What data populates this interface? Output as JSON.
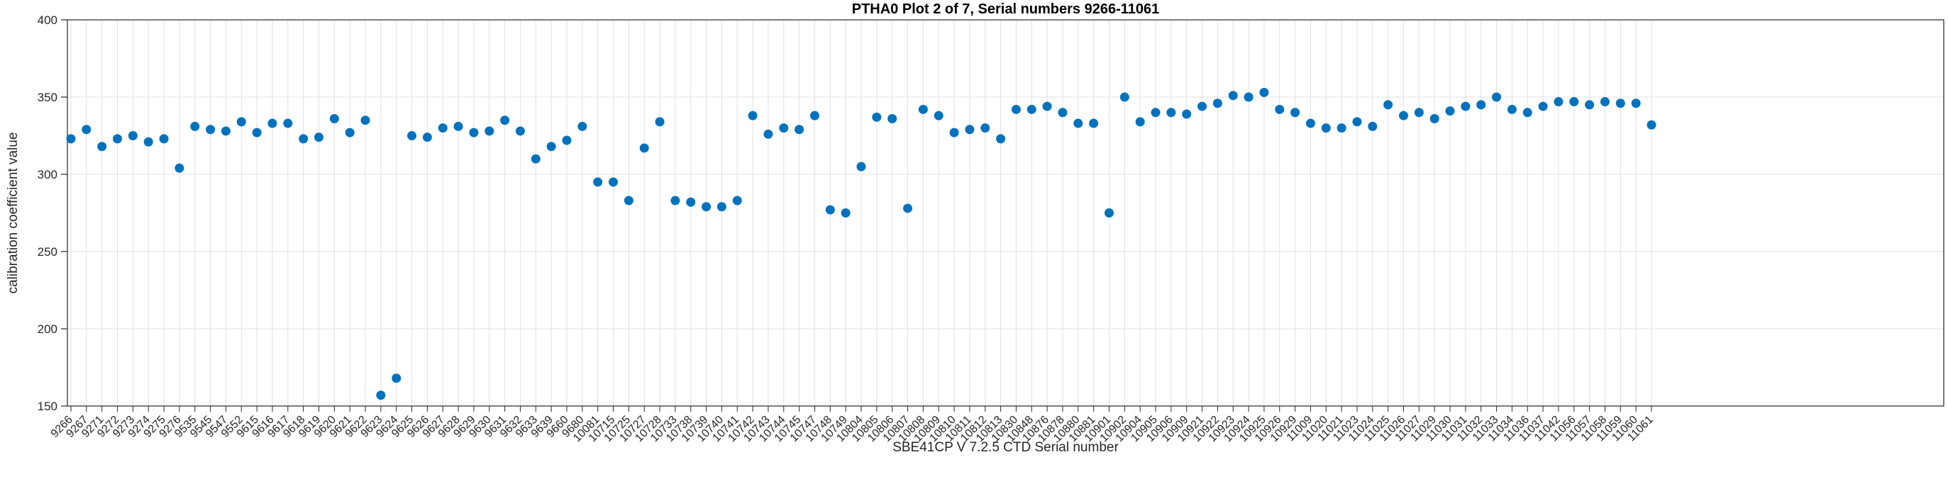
{
  "title": "PTHA0 Plot 2 of 7, Serial numbers 9266-11061",
  "chart_data": {
    "type": "scatter",
    "title": "PTHA0 Plot 2 of 7, Serial numbers 9266-11061",
    "xlabel": "SBE41CP V 7.2.5 CTD Serial number",
    "ylabel": "calibration coefficient value",
    "ylim": [
      150,
      400
    ],
    "yticks": [
      150,
      200,
      250,
      300,
      350,
      400
    ],
    "grid": true,
    "legend": "none",
    "marker_color": "#0072BD",
    "axis_color": "#262626",
    "grid_color": "#e0e0e0",
    "x_tick_rotation": 45,
    "categories": [
      "9266",
      "9267",
      "9271",
      "9272",
      "9273",
      "9274",
      "9275",
      "9276",
      "9535",
      "9545",
      "9547",
      "9552",
      "9615",
      "9616",
      "9617",
      "9618",
      "9619",
      "9620",
      "9621",
      "9622",
      "9623",
      "9624",
      "9625",
      "9626",
      "9627",
      "9628",
      "9629",
      "9630",
      "9631",
      "9632",
      "9633",
      "9639",
      "9660",
      "9680",
      "10081",
      "10715",
      "10725",
      "10727",
      "10728",
      "10733",
      "10738",
      "10739",
      "10740",
      "10741",
      "10742",
      "10743",
      "10744",
      "10745",
      "10747",
      "10748",
      "10749",
      "10804",
      "10805",
      "10806",
      "10807",
      "10808",
      "10809",
      "10810",
      "10811",
      "10812",
      "10813",
      "10830",
      "10848",
      "10876",
      "10878",
      "10880",
      "10881",
      "10901",
      "10902",
      "10904",
      "10905",
      "10906",
      "10909",
      "10921",
      "10922",
      "10923",
      "10924",
      "10925",
      "10926",
      "10929",
      "11009",
      "11020",
      "11021",
      "11023",
      "11024",
      "11025",
      "11026",
      "11027",
      "11029",
      "11030",
      "11031",
      "11032",
      "11033",
      "11034",
      "11036",
      "11037",
      "11042",
      "11056",
      "11057",
      "11058",
      "11059",
      "11060",
      "11061"
    ],
    "values": [
      323,
      329,
      318,
      323,
      325,
      321,
      323,
      304,
      331,
      329,
      328,
      334,
      327,
      333,
      333,
      323,
      324,
      336,
      327,
      335,
      157,
      168,
      325,
      324,
      330,
      331,
      327,
      328,
      335,
      328,
      310,
      318,
      322,
      331,
      295,
      295,
      283,
      317,
      334,
      283,
      282,
      279,
      279,
      283,
      338,
      326,
      330,
      329,
      338,
      277,
      275,
      305,
      337,
      336,
      278,
      342,
      338,
      327,
      329,
      330,
      323,
      342,
      342,
      344,
      340,
      333,
      333,
      275,
      350,
      334,
      340,
      340,
      339,
      344,
      346,
      351,
      350,
      353,
      342,
      340,
      333,
      330,
      330,
      334,
      331,
      345,
      338,
      340,
      336,
      341,
      344,
      345,
      350,
      342,
      340,
      344,
      347,
      347,
      345,
      347,
      346,
      346,
      332
    ]
  }
}
